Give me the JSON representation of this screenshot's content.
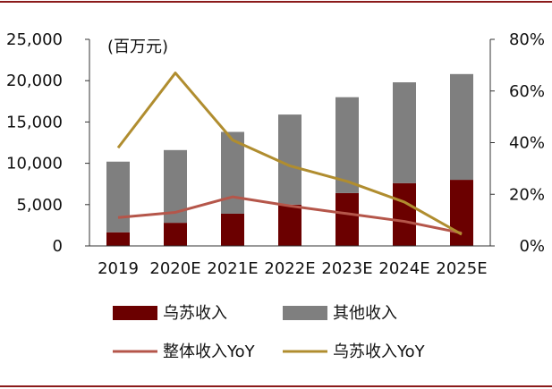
{
  "chart_data": {
    "type": "bar",
    "unit_label": "(百万元)",
    "categories": [
      "2019",
      "2020E",
      "2021E",
      "2022E",
      "2023E",
      "2024E",
      "2025E"
    ],
    "y_left": {
      "min": 0,
      "max": 25000,
      "ticks": [
        "0",
        "5,000",
        "10,000",
        "15,000",
        "20,000",
        "25,000"
      ]
    },
    "y_right": {
      "min": 0,
      "max": 0.8,
      "ticks": [
        "0%",
        "20%",
        "40%",
        "60%",
        "80%"
      ]
    },
    "series": [
      {
        "name": "乌苏收入",
        "kind": "bar",
        "axis": "left",
        "color": "#6b0000",
        "values": [
          1650,
          2800,
          3900,
          5000,
          6400,
          7600,
          8000
        ]
      },
      {
        "name": "其他收入",
        "kind": "bar",
        "axis": "left",
        "color": "#7f7f7f",
        "values": [
          8550,
          8800,
          9900,
          10900,
          11600,
          12200,
          12800
        ]
      },
      {
        "name": "整体收入YoY",
        "kind": "line",
        "axis": "right",
        "color": "#b5564a",
        "values": [
          0.11,
          0.13,
          0.19,
          0.155,
          0.125,
          0.095,
          0.05
        ]
      },
      {
        "name": "乌苏收入YoY",
        "kind": "line",
        "axis": "right",
        "color": "#b08d2f",
        "values": [
          0.38,
          0.67,
          0.41,
          0.31,
          0.25,
          0.17,
          0.045
        ]
      }
    ],
    "legend": [
      {
        "label": "乌苏收入",
        "swatch": "bar",
        "color": "#6b0000"
      },
      {
        "label": "其他收入",
        "swatch": "bar",
        "color": "#7f7f7f"
      },
      {
        "label": "整体收入YoY",
        "swatch": "line",
        "color": "#b5564a"
      },
      {
        "label": "乌苏收入YoY",
        "swatch": "line",
        "color": "#b08d2f"
      }
    ],
    "frame_color": "#8b1a1a"
  }
}
